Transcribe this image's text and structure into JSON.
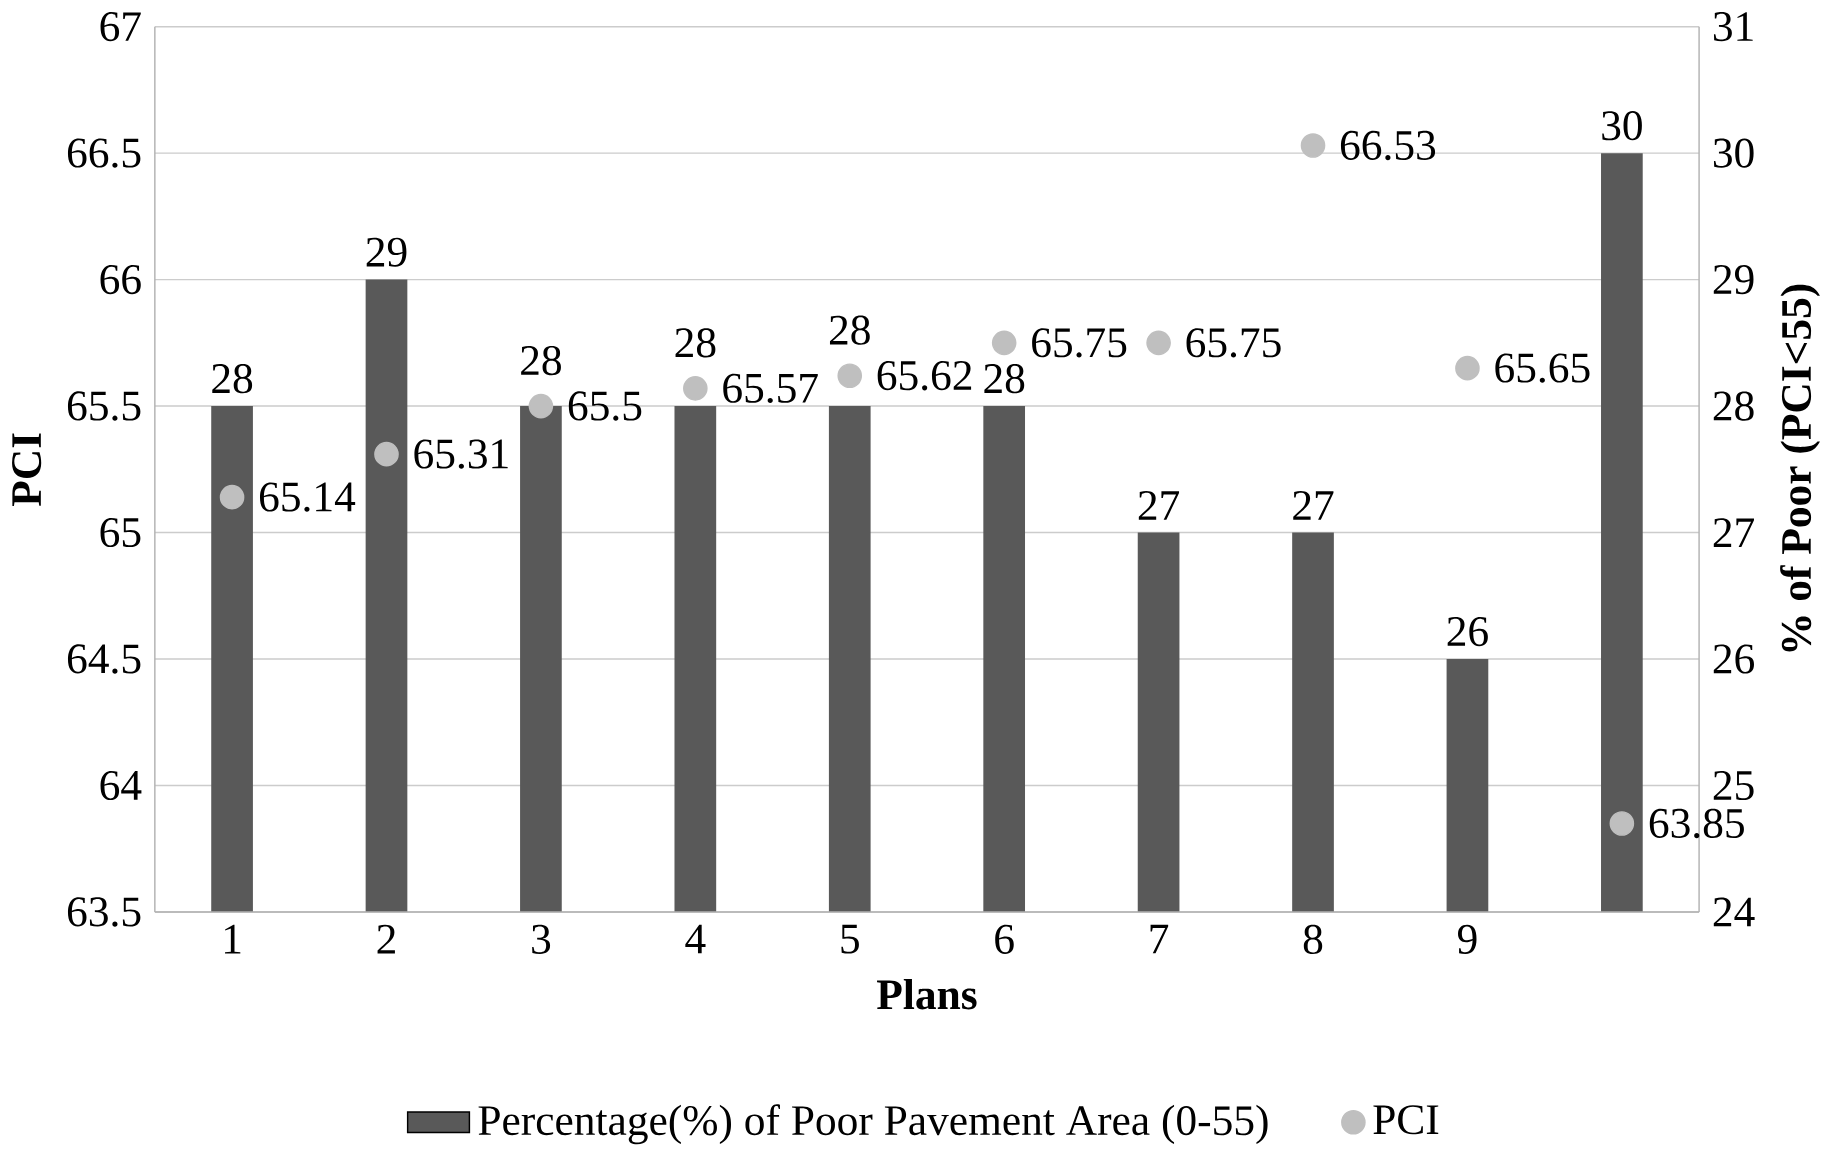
{
  "chart_data": {
    "type": "bar",
    "categories": [
      "1",
      "2",
      "3",
      "4",
      "5",
      "6",
      "7",
      "8",
      "9",
      null
    ],
    "xlabel": "Plans",
    "ylabel": "PCI",
    "y2label": "% of Poor (PCI<55)",
    "series": [
      {
        "name": "Percentage(%) of Poor Pavement Area (0-55)",
        "axis": "y2",
        "color": "#595959",
        "values": [
          28,
          29,
          28,
          28,
          28,
          28,
          27,
          27,
          26,
          30
        ]
      },
      {
        "name": "PCI",
        "type": "scatter",
        "axis": "y",
        "color": "#bfbfbf",
        "values": [
          65.14,
          65.31,
          65.5,
          65.57,
          65.62,
          65.75,
          65.75,
          66.53,
          65.65,
          63.85
        ]
      }
    ],
    "ylim": [
      63.5,
      67
    ],
    "yticks": [
      63.5,
      64,
      64.5,
      65,
      65.5,
      66,
      66.5,
      67
    ],
    "y2lim": [
      24,
      31
    ],
    "y2ticks": [
      24,
      25,
      26,
      27,
      28,
      29,
      30,
      31
    ],
    "data_labels": true,
    "grid": "y",
    "legend": "bottom"
  }
}
